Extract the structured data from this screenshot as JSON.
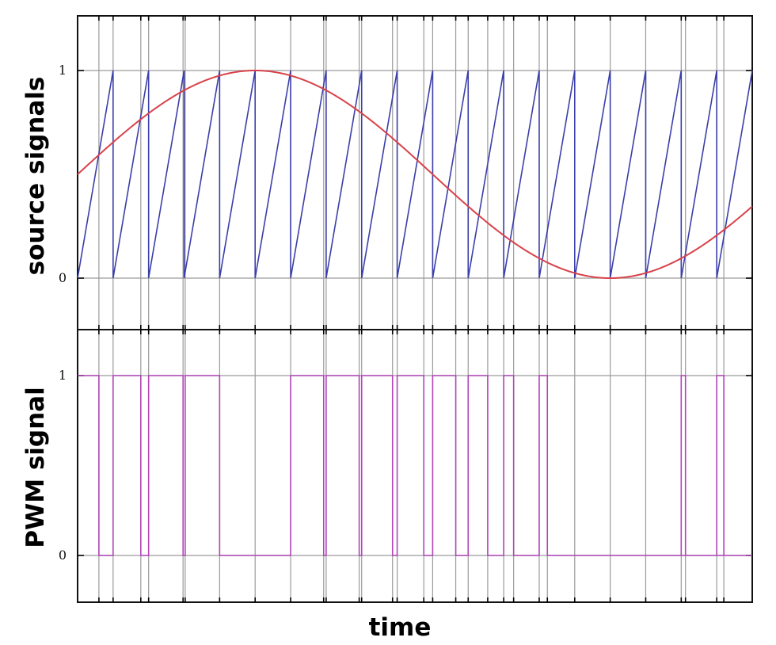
{
  "chart_data": [
    {
      "type": "line",
      "ylabel": "source signals",
      "xlabel": "",
      "yticks": [
        "0",
        "1"
      ],
      "ylim": [
        -0.25,
        1.25
      ],
      "xlim": [
        0,
        19
      ],
      "grid": true,
      "series": [
        {
          "kind": "sawtooth",
          "color": "#3b3fa8",
          "period": 1,
          "x": [
            0,
            1,
            1,
            2,
            2,
            3,
            3,
            4,
            4,
            5,
            5,
            6,
            6,
            7,
            7,
            8,
            8,
            9,
            9,
            10,
            10,
            11,
            11,
            12,
            12,
            13,
            13,
            14,
            14,
            15,
            15,
            16,
            16,
            17,
            17,
            18,
            18,
            19
          ],
          "values": [
            0,
            1,
            0,
            1,
            0,
            1,
            0,
            1,
            0,
            1,
            0,
            1,
            0,
            1,
            0,
            1,
            0,
            1,
            0,
            1,
            0,
            1,
            0,
            1,
            0,
            1,
            0,
            1,
            0,
            1,
            0,
            1,
            0,
            1,
            0,
            1,
            0,
            1
          ]
        },
        {
          "kind": "sine",
          "color": "#d9424a",
          "x": [
            0,
            1,
            2,
            3,
            4,
            5,
            6,
            7,
            8,
            9,
            10,
            11,
            12,
            13,
            14,
            15,
            16,
            17,
            18,
            19
          ],
          "values": [
            0.5,
            0.65,
            0.78,
            0.89,
            0.97,
            1.0,
            0.98,
            0.91,
            0.8,
            0.67,
            0.52,
            0.37,
            0.24,
            0.12,
            0.04,
            0.0,
            0.01,
            0.06,
            0.15,
            0.34
          ]
        }
      ]
    },
    {
      "type": "line",
      "ylabel": "PWM signal",
      "xlabel": "time",
      "yticks": [
        "0",
        "1"
      ],
      "ylim": [
        -0.25,
        1.25
      ],
      "xlim": [
        0,
        19
      ],
      "grid": true,
      "series": [
        {
          "kind": "step",
          "color": "#b146b7",
          "x": [
            0,
            0.6,
            0.6,
            1.0,
            1.0,
            1.78,
            1.78,
            2.0,
            2.0,
            2.97,
            2.97,
            3.03,
            3.03,
            4.0,
            4.0,
            6.0,
            6.0,
            6.93,
            6.93,
            7.0,
            7.0,
            7.93,
            7.93,
            8.0,
            8.0,
            8.87,
            8.87,
            9.0,
            9.0,
            9.75,
            9.75,
            10.0,
            10.0,
            10.65,
            10.65,
            11.0,
            11.0,
            11.55,
            11.55,
            12.0,
            12.0,
            12.28,
            12.28,
            13.0,
            13.0,
            13.23,
            13.23,
            14.0,
            14.0,
            19.0,
            19.0,
            19.0
          ],
          "values": [
            1,
            1,
            0,
            0,
            1,
            1,
            0,
            0,
            1,
            1,
            0,
            0,
            1,
            1,
            0,
            0,
            1,
            1,
            0,
            0,
            1,
            1,
            0,
            0,
            1,
            1,
            0,
            0,
            1,
            1,
            0,
            0,
            1,
            1,
            0,
            0,
            1,
            1,
            0,
            0,
            1,
            1,
            0,
            0,
            1,
            1,
            0,
            0,
            0,
            0,
            0,
            0
          ]
        }
      ],
      "extra_pulses": [
        [
          17.0,
          17.12
        ],
        [
          18.0,
          18.2
        ]
      ]
    }
  ],
  "colors": {
    "frame": "#111111",
    "grid": "#9a9a9a"
  }
}
